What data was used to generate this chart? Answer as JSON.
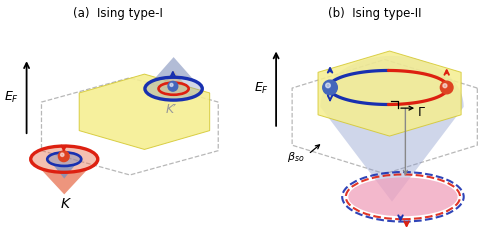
{
  "title_a": "(a)  Ising type-I",
  "title_b": "(b)  Ising type-II",
  "bg_color": "#ffffff",
  "yellow_color": "#f5ee90",
  "yellow_edge": "#d4c830",
  "blue_dome_color": "#8899cc",
  "blue_dome_alpha": 0.4,
  "cone_red": "#e87858",
  "cone_blue": "#8090bb",
  "cone_tan": "#c8b898",
  "ring_red": "#dd2010",
  "ring_blue": "#1830b0",
  "ball_red": "#dd4422",
  "ball_blue": "#4466bb",
  "pink_fill": "#f0a0bc",
  "dash_color": "#999999",
  "ef_color": "#000000",
  "label_K": "K",
  "label_Kp": "K′",
  "label_EF": "$E_F$",
  "label_Gamma": "Γ",
  "label_bso": "$\\beta_{so}$"
}
